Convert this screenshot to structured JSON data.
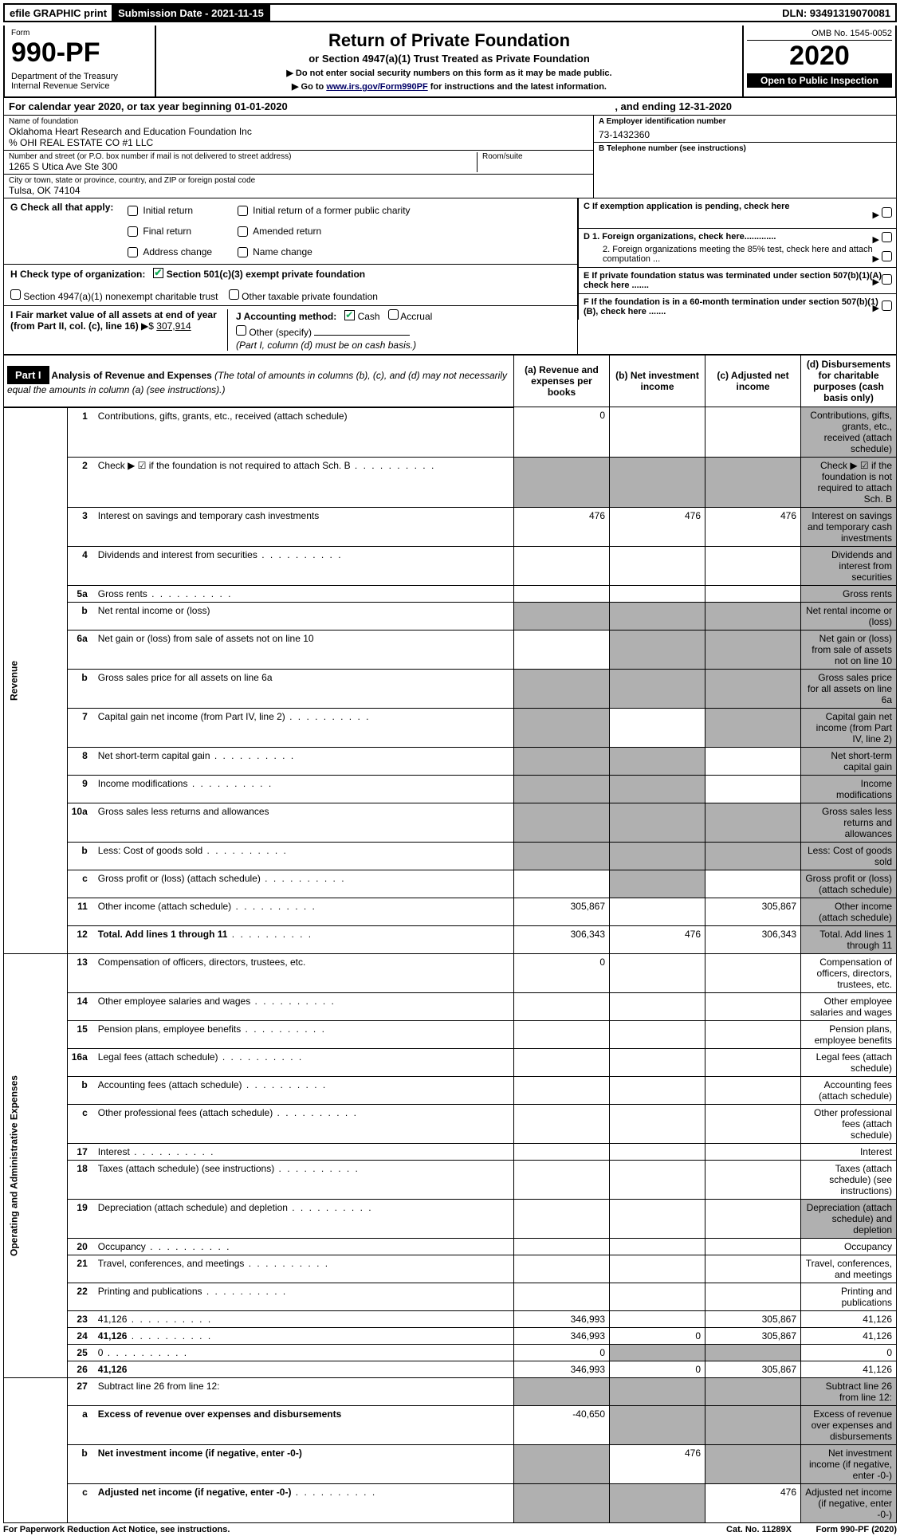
{
  "topbar": {
    "efile": "efile GRAPHIC print",
    "submission_label": "Submission Date - 2021-11-15",
    "dln_label": "DLN: 93491319070081"
  },
  "header": {
    "form_label": "Form",
    "form_number": "990-PF",
    "department": "Department of the Treasury\nInternal Revenue Service",
    "title": "Return of Private Foundation",
    "subtitle": "or Section 4947(a)(1) Trust Treated as Private Foundation",
    "instr1": "▶ Do not enter social security numbers on this form as it may be made public.",
    "instr2_prefix": "▶ Go to ",
    "instr2_link": "www.irs.gov/Form990PF",
    "instr2_suffix": " for instructions and the latest information.",
    "omb": "OMB No. 1545-0052",
    "year": "2020",
    "open_to_public": "Open to Public Inspection"
  },
  "calendar": {
    "text": "For calendar year 2020, or tax year beginning 01-01-2020",
    "ending": ", and ending 12-31-2020"
  },
  "entity": {
    "name_label": "Name of foundation",
    "name": "Oklahoma Heart Research and Education Foundation Inc",
    "care_of": "% OHI REAL ESTATE CO #1 LLC",
    "street_label": "Number and street (or P.O. box number if mail is not delivered to street address)",
    "street": "1265 S Utica Ave Ste 300",
    "room_label": "Room/suite",
    "city_label": "City or town, state or province, country, and ZIP or foreign postal code",
    "city": "Tulsa, OK  74104",
    "ein_label": "A Employer identification number",
    "ein": "73-1432360",
    "phone_label": "B Telephone number (see instructions)",
    "c_label": "C If exemption application is pending, check here",
    "d1_label": "D 1. Foreign organizations, check here.............",
    "d2_label": "2. Foreign organizations meeting the 85% test, check here and attach computation ...",
    "e_label": "E  If private foundation status was terminated under section 507(b)(1)(A), check here .......",
    "f_label": "F  If the foundation is in a 60-month termination under section 507(b)(1)(B), check here ......."
  },
  "g": {
    "label": "G Check all that apply:",
    "opts": [
      "Initial return",
      "Final return",
      "Address change",
      "Initial return of a former public charity",
      "Amended return",
      "Name change"
    ]
  },
  "h": {
    "label": "H Check type of organization:",
    "opt1": "Section 501(c)(3) exempt private foundation",
    "opt2": "Section 4947(a)(1) nonexempt charitable trust",
    "opt3": "Other taxable private foundation"
  },
  "i": {
    "label": "I Fair market value of all assets at end of year (from Part II, col. (c), line 16)",
    "value": "307,914"
  },
  "j": {
    "label": "J Accounting method:",
    "cash": "Cash",
    "accrual": "Accrual",
    "other": "Other (specify)",
    "note": "(Part I, column (d) must be on cash basis.)"
  },
  "part1": {
    "label": "Part I",
    "title": "Analysis of Revenue and Expenses",
    "note": "(The total of amounts in columns (b), (c), and (d) may not necessarily equal the amounts in column (a) (see instructions).)",
    "cols": {
      "a": "(a) Revenue and expenses per books",
      "b": "(b) Net investment income",
      "c": "(c) Adjusted net income",
      "d": "(d) Disbursements for charitable purposes (cash basis only)"
    }
  },
  "sidebars": {
    "revenue": "Revenue",
    "expenses": "Operating and Administrative Expenses"
  },
  "rows": [
    {
      "n": "1",
      "d": "Contributions, gifts, grants, etc., received (attach schedule)",
      "a": "0",
      "b": "",
      "c": "",
      "d_grey": true
    },
    {
      "n": "2",
      "d": "Check ▶ ☑ if the foundation is not required to attach Sch. B",
      "dots": true,
      "all_grey": true
    },
    {
      "n": "3",
      "d": "Interest on savings and temporary cash investments",
      "a": "476",
      "b": "476",
      "c": "476",
      "d_grey": true
    },
    {
      "n": "4",
      "d": "Dividends and interest from securities",
      "dots": true,
      "d_grey": true
    },
    {
      "n": "5a",
      "d": "Gross rents",
      "dots": true,
      "d_grey": true
    },
    {
      "n": "b",
      "d": "Net rental income or (loss)",
      "underline": true,
      "all_grey": true
    },
    {
      "n": "6a",
      "d": "Net gain or (loss) from sale of assets not on line 10",
      "b_grey": true,
      "c_grey": true,
      "d_grey": true
    },
    {
      "n": "b",
      "d": "Gross sales price for all assets on line 6a",
      "underline": true,
      "all_grey": true
    },
    {
      "n": "7",
      "d": "Capital gain net income (from Part IV, line 2)",
      "dots": true,
      "a_grey": true,
      "c_grey": true,
      "d_grey": true
    },
    {
      "n": "8",
      "d": "Net short-term capital gain",
      "dots": true,
      "a_grey": true,
      "b_grey": true,
      "d_grey": true
    },
    {
      "n": "9",
      "d": "Income modifications",
      "dots": true,
      "a_grey": true,
      "b_grey": true,
      "d_grey": true
    },
    {
      "n": "10a",
      "d": "Gross sales less returns and allowances",
      "underline": true,
      "all_grey": true
    },
    {
      "n": "b",
      "d": "Less: Cost of goods sold",
      "dots": true,
      "underline": true,
      "all_grey": true
    },
    {
      "n": "c",
      "d": "Gross profit or (loss) (attach schedule)",
      "dots": true,
      "b_grey": true,
      "d_grey": true
    },
    {
      "n": "11",
      "d": "Other income (attach schedule)",
      "dots": true,
      "a": "305,867",
      "c": "305,867",
      "d_grey": true
    },
    {
      "n": "12",
      "d": "Total. Add lines 1 through 11",
      "dots": true,
      "bold": true,
      "a": "306,343",
      "b": "476",
      "c": "306,343",
      "d_grey": true
    }
  ],
  "exprows": [
    {
      "n": "13",
      "d": "Compensation of officers, directors, trustees, etc.",
      "a": "0"
    },
    {
      "n": "14",
      "d": "Other employee salaries and wages",
      "dots": true
    },
    {
      "n": "15",
      "d": "Pension plans, employee benefits",
      "dots": true
    },
    {
      "n": "16a",
      "d": "Legal fees (attach schedule)",
      "dots": true
    },
    {
      "n": "b",
      "d": "Accounting fees (attach schedule)",
      "dots": true
    },
    {
      "n": "c",
      "d": "Other professional fees (attach schedule)",
      "dots": true
    },
    {
      "n": "17",
      "d": "Interest",
      "dots": true
    },
    {
      "n": "18",
      "d": "Taxes (attach schedule) (see instructions)",
      "dots": true
    },
    {
      "n": "19",
      "d": "Depreciation (attach schedule) and depletion",
      "dots": true,
      "d_grey": true
    },
    {
      "n": "20",
      "d": "Occupancy",
      "dots": true
    },
    {
      "n": "21",
      "d": "Travel, conferences, and meetings",
      "dots": true
    },
    {
      "n": "22",
      "d": "Printing and publications",
      "dots": true
    },
    {
      "n": "23",
      "d": "41,126",
      "dots": true,
      "a": "346,993",
      "c": "305,867"
    },
    {
      "n": "24",
      "d": "41,126",
      "dots": true,
      "bold": true,
      "a": "346,993",
      "b": "0",
      "c": "305,867"
    },
    {
      "n": "25",
      "d": "0",
      "dots": true,
      "a": "0",
      "b_grey": true,
      "c_grey": true
    },
    {
      "n": "26",
      "d": "41,126",
      "bold": true,
      "a": "346,993",
      "b": "0",
      "c": "305,867"
    }
  ],
  "netrows": [
    {
      "n": "27",
      "d": "Subtract line 26 from line 12:",
      "all_grey": true
    },
    {
      "n": "a",
      "d": "Excess of revenue over expenses and disbursements",
      "bold": true,
      "a": "-40,650",
      "b_grey": true,
      "c_grey": true,
      "d_grey": true
    },
    {
      "n": "b",
      "d": "Net investment income (if negative, enter -0-)",
      "bold": true,
      "a_grey": true,
      "b": "476",
      "c_grey": true,
      "d_grey": true
    },
    {
      "n": "c",
      "d": "Adjusted net income (if negative, enter -0-)",
      "dots": true,
      "bold": true,
      "a_grey": true,
      "b_grey": true,
      "c": "476",
      "d_grey": true
    }
  ],
  "footer": {
    "left": "For Paperwork Reduction Act Notice, see instructions.",
    "cat": "Cat. No. 11289X",
    "right": "Form 990-PF (2020)"
  }
}
